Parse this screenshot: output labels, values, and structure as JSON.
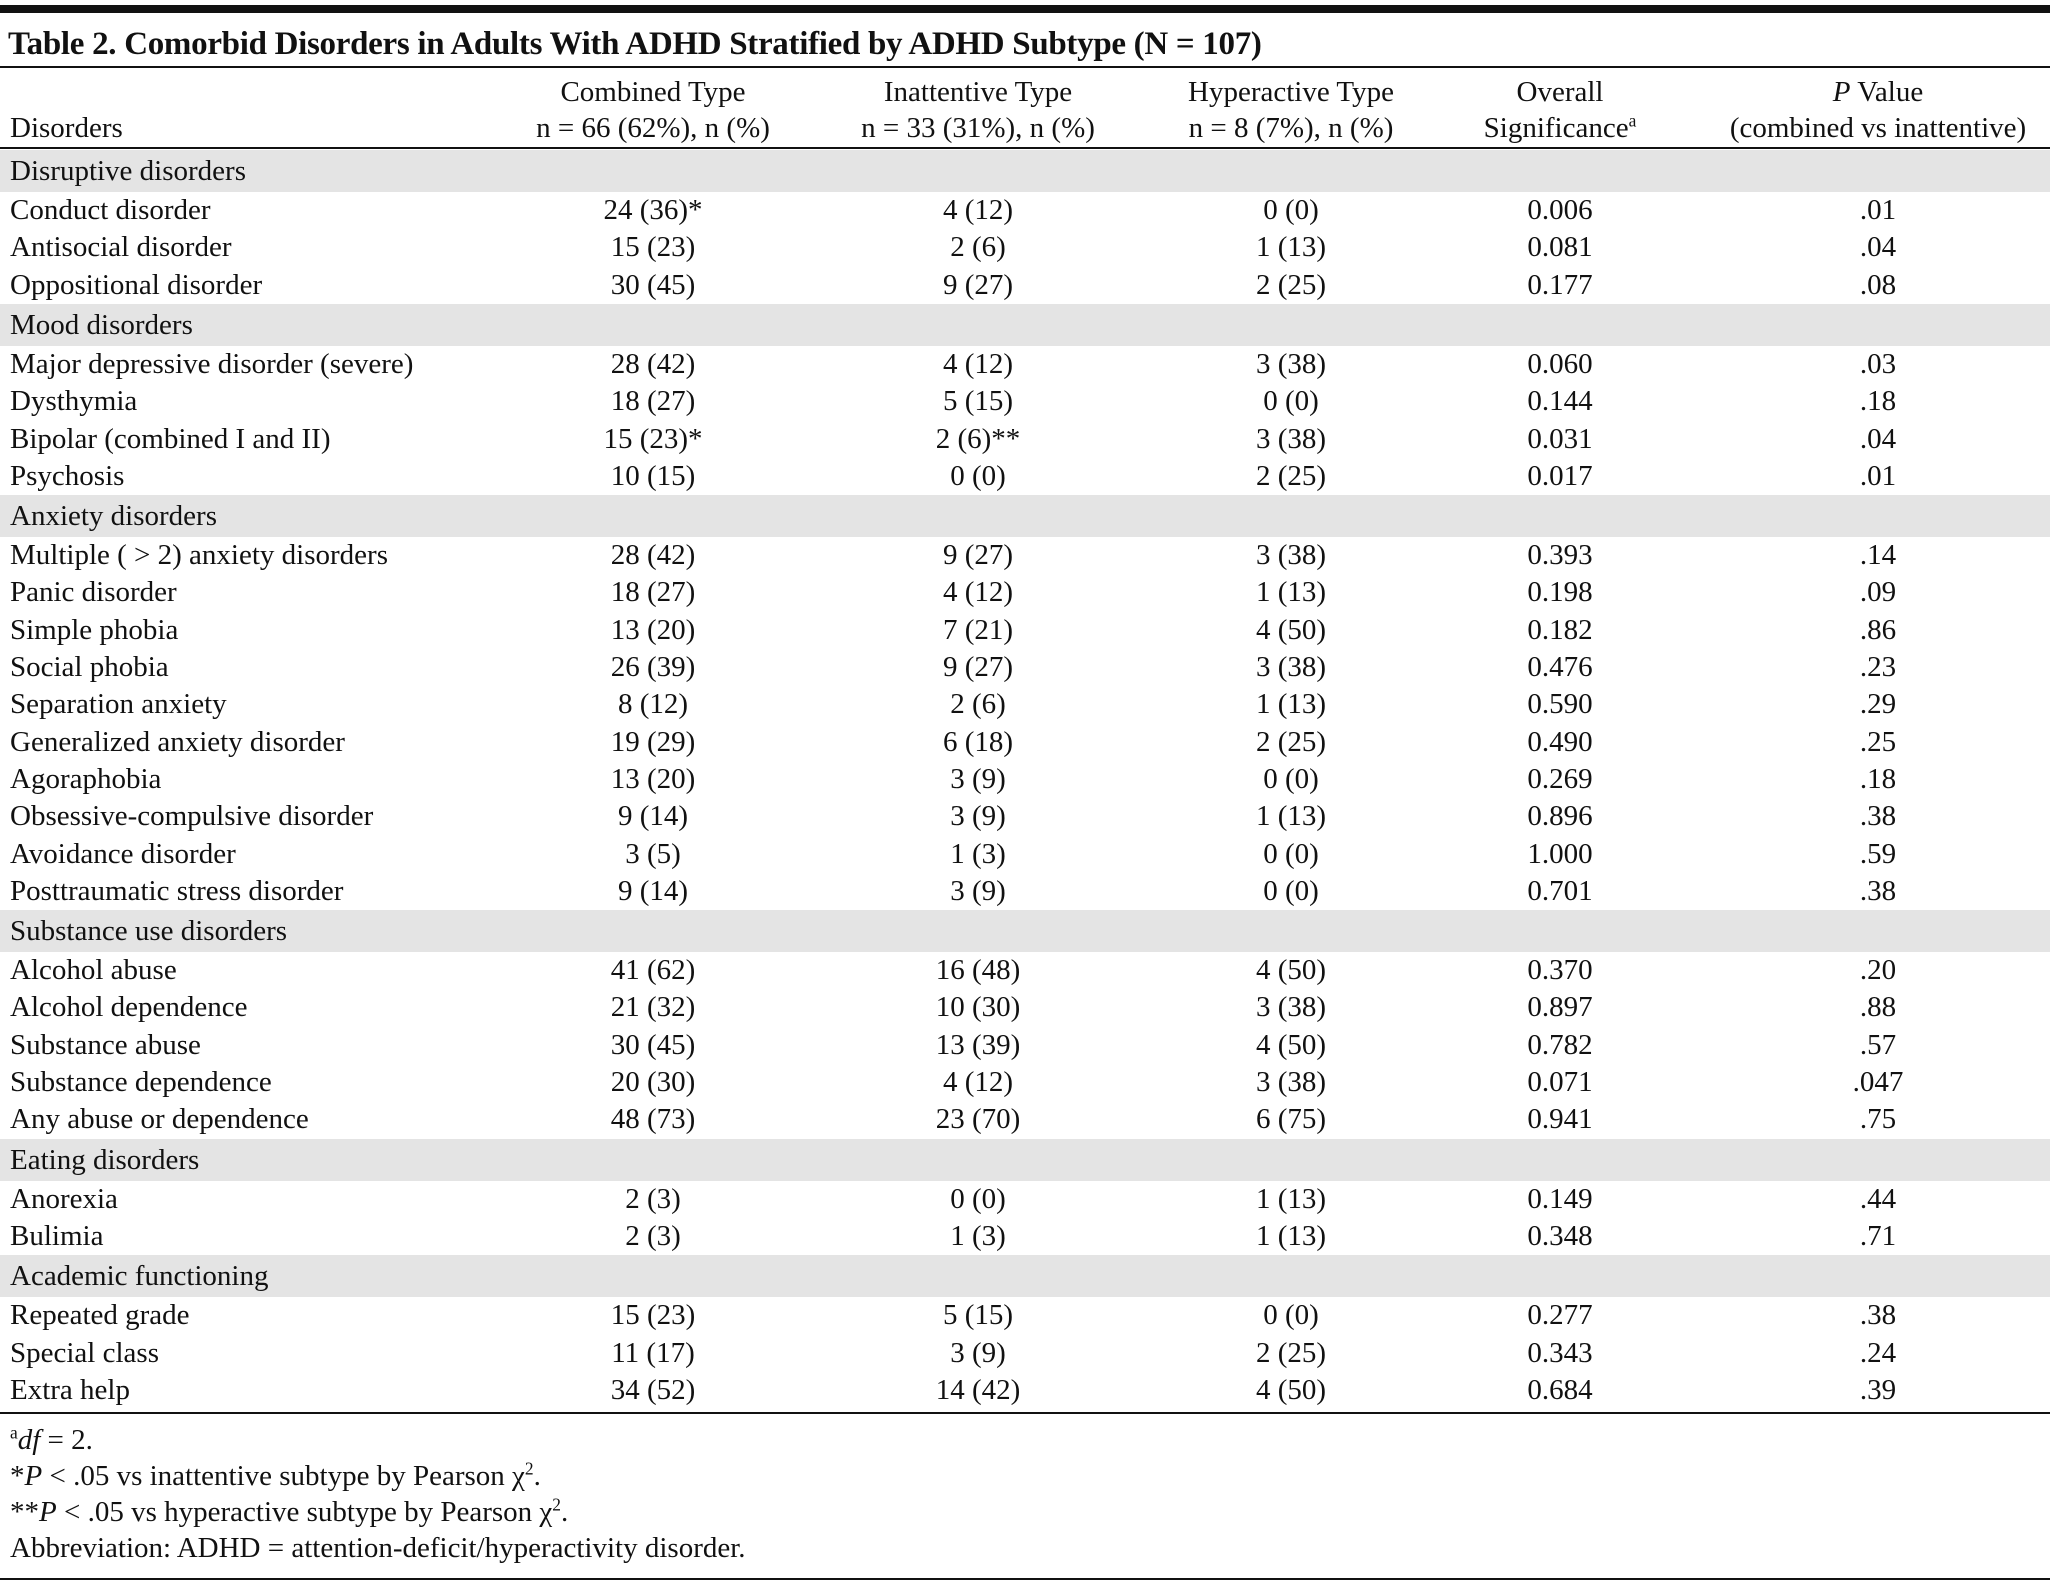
{
  "title": "Table 2. Comorbid Disorders in Adults With ADHD Stratified by ADHD Subtype (N = 107)",
  "header": [
    [
      [
        "Disorders"
      ]
    ],
    [
      [
        "Combined Type"
      ],
      [
        "n = 66 (62%), n (%)"
      ]
    ],
    [
      [
        "Inattentive Type"
      ],
      [
        "n = 33 (31%), n (%)"
      ]
    ],
    [
      [
        "Hyperactive Type"
      ],
      [
        "n = 8 (7%), n (%)"
      ]
    ],
    [
      [
        "Overall"
      ],
      [
        "Significance",
        "a"
      ]
    ],
    [
      [
        "P",
        " Value"
      ],
      [
        "(combined vs inattentive)"
      ]
    ]
  ],
  "sections": [
    {
      "name": "Disruptive disorders",
      "rows": [
        [
          "Conduct disorder",
          "24 (36)*",
          "4 (12)",
          "0 (0)",
          "0.006",
          ".01"
        ],
        [
          "Antisocial disorder",
          "15 (23)",
          "2 (6)",
          "1 (13)",
          "0.081",
          ".04"
        ],
        [
          "Oppositional disorder",
          "30 (45)",
          "9 (27)",
          "2 (25)",
          "0.177",
          ".08"
        ]
      ]
    },
    {
      "name": "Mood disorders",
      "rows": [
        [
          "Major depressive disorder (severe)",
          "28 (42)",
          "4 (12)",
          "3 (38)",
          "0.060",
          ".03"
        ],
        [
          "Dysthymia",
          "18 (27)",
          "5 (15)",
          "0 (0)",
          "0.144",
          ".18"
        ],
        [
          "Bipolar (combined I and II)",
          "15 (23)*",
          "2 (6)**",
          "3 (38)",
          "0.031",
          ".04"
        ],
        [
          "Psychosis",
          "10 (15)",
          "0 (0)",
          "2 (25)",
          "0.017",
          ".01"
        ]
      ]
    },
    {
      "name": "Anxiety disorders",
      "rows": [
        [
          "Multiple ( > 2) anxiety disorders",
          "28 (42)",
          "9 (27)",
          "3 (38)",
          "0.393",
          ".14"
        ],
        [
          "Panic disorder",
          "18 (27)",
          "4 (12)",
          "1 (13)",
          "0.198",
          ".09"
        ],
        [
          "Simple phobia",
          "13 (20)",
          "7 (21)",
          "4 (50)",
          "0.182",
          ".86"
        ],
        [
          "Social phobia",
          "26 (39)",
          "9 (27)",
          "3 (38)",
          "0.476",
          ".23"
        ],
        [
          "Separation anxiety",
          "8 (12)",
          "2 (6)",
          "1 (13)",
          "0.590",
          ".29"
        ],
        [
          "Generalized anxiety disorder",
          "19 (29)",
          "6 (18)",
          "2 (25)",
          "0.490",
          ".25"
        ],
        [
          "Agoraphobia",
          "13 (20)",
          "3 (9)",
          "0 (0)",
          "0.269",
          ".18"
        ],
        [
          "Obsessive-compulsive disorder",
          "9 (14)",
          "3 (9)",
          "1 (13)",
          "0.896",
          ".38"
        ],
        [
          "Avoidance disorder",
          "3 (5)",
          "1 (3)",
          "0 (0)",
          "1.000",
          ".59"
        ],
        [
          "Posttraumatic stress disorder",
          "9 (14)",
          "3 (9)",
          "0 (0)",
          "0.701",
          ".38"
        ]
      ]
    },
    {
      "name": "Substance use disorders",
      "rows": [
        [
          "Alcohol abuse",
          "41 (62)",
          "16 (48)",
          "4 (50)",
          "0.370",
          ".20"
        ],
        [
          "Alcohol dependence",
          "21 (32)",
          "10 (30)",
          "3 (38)",
          "0.897",
          ".88"
        ],
        [
          "Substance abuse",
          "30 (45)",
          "13 (39)",
          "4 (50)",
          "0.782",
          ".57"
        ],
        [
          "Substance dependence",
          "20 (30)",
          "4 (12)",
          "3 (38)",
          "0.071",
          ".047"
        ],
        [
          "Any abuse or dependence",
          "48 (73)",
          "23 (70)",
          "6 (75)",
          "0.941",
          ".75"
        ]
      ]
    },
    {
      "name": "Eating disorders",
      "rows": [
        [
          "Anorexia",
          "2 (3)",
          "0 (0)",
          "1 (13)",
          "0.149",
          ".44"
        ],
        [
          "Bulimia",
          "2 (3)",
          "1 (3)",
          "1 (13)",
          "0.348",
          ".71"
        ]
      ]
    },
    {
      "name": "Academic functioning",
      "rows": [
        [
          "Repeated grade",
          "15 (23)",
          "5 (15)",
          "0 (0)",
          "0.277",
          ".38"
        ],
        [
          "Special class",
          "11 (17)",
          "3 (9)",
          "2 (25)",
          "0.343",
          ".24"
        ],
        [
          "Extra help",
          "34 (52)",
          "14 (42)",
          "4 (50)",
          "0.684",
          ".39"
        ]
      ]
    }
  ],
  "footnotes": [
    [
      "a",
      "df",
      " = 2."
    ],
    [
      "*",
      "P",
      " < .05 vs inattentive subtype by Pearson χ",
      "2",
      "."
    ],
    [
      "**",
      "P",
      " < .05 vs hyperactive subtype by Pearson χ",
      "2",
      "."
    ],
    [
      "Abbreviation: ADHD = attention-deficit/hyperactivity disorder."
    ]
  ]
}
